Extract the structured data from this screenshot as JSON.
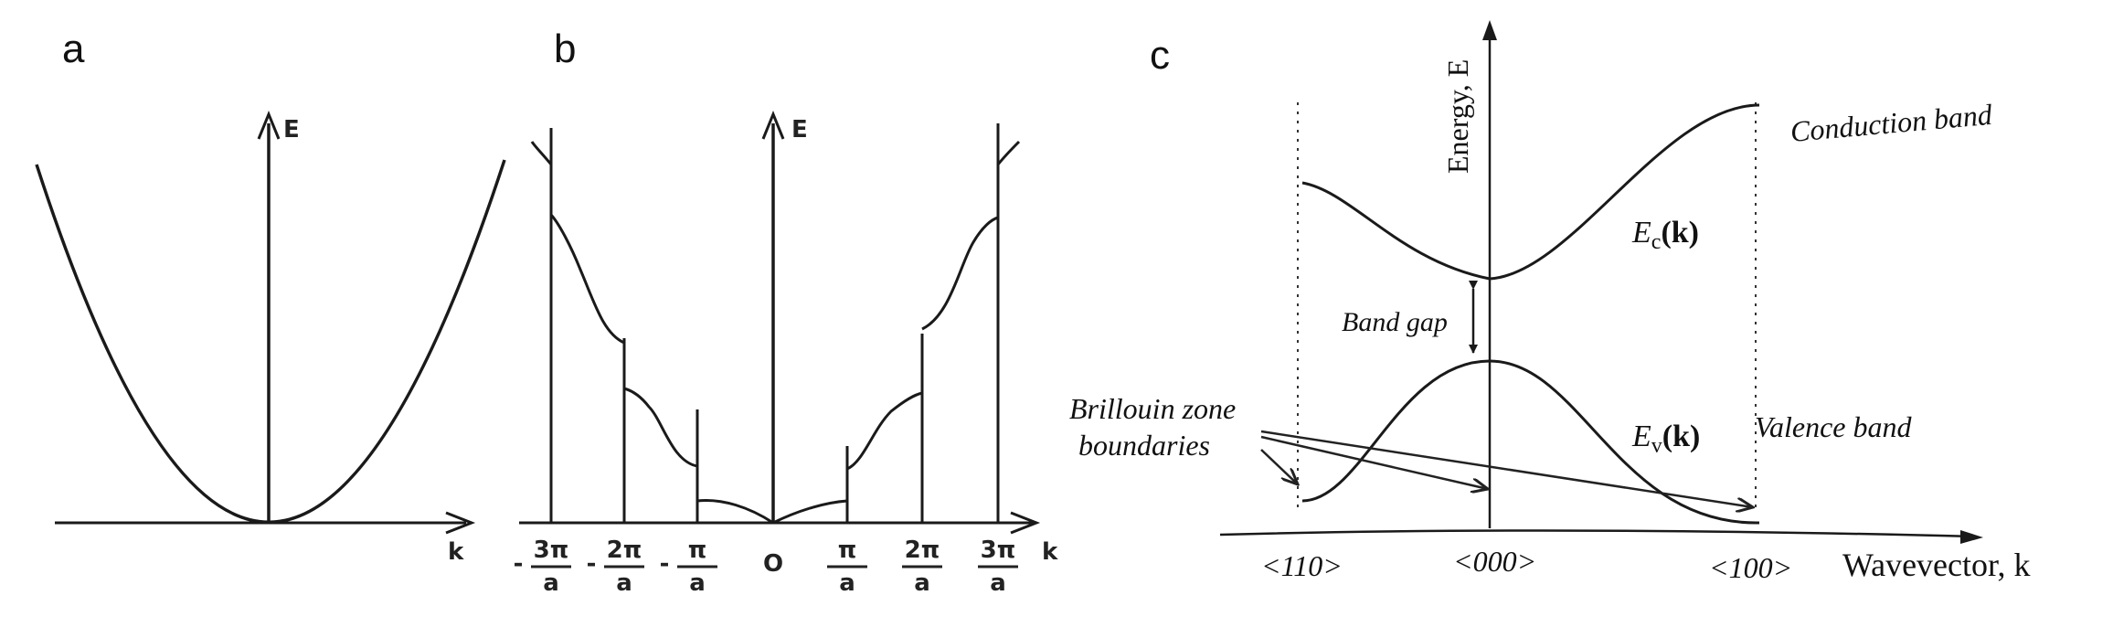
{
  "panels": {
    "a": {
      "letter": "a",
      "axis_y": "E",
      "axis_x": "k"
    },
    "b": {
      "letter": "b",
      "axis_y": "E",
      "axis_x": "k",
      "origin": "O",
      "ticks": [
        {
          "sign": "-",
          "num": "3π",
          "den": "a"
        },
        {
          "sign": "-",
          "num": "2π",
          "den": "a"
        },
        {
          "sign": "-",
          "num": "π",
          "den": "a"
        },
        {
          "sign": "",
          "num": "π",
          "den": "a"
        },
        {
          "sign": "",
          "num": "2π",
          "den": "a"
        },
        {
          "sign": "",
          "num": "3π",
          "den": "a"
        }
      ]
    },
    "c": {
      "letter": "c",
      "axis_y": "Energy, E",
      "axis_x": "Wavevector, k",
      "conduction_band": "Conduction band",
      "valence_band": "Valence band",
      "ec_label": "E",
      "ec_sub": "c",
      "ev_label": "E",
      "ev_sub": "v",
      "k_arg": "(k)",
      "band_gap": "Band gap",
      "brillouin_line1": "Brillouin zone",
      "brillouin_line2": "boundaries",
      "tick_110": "<110>",
      "tick_000": "<000>",
      "tick_100": "<100>"
    }
  }
}
